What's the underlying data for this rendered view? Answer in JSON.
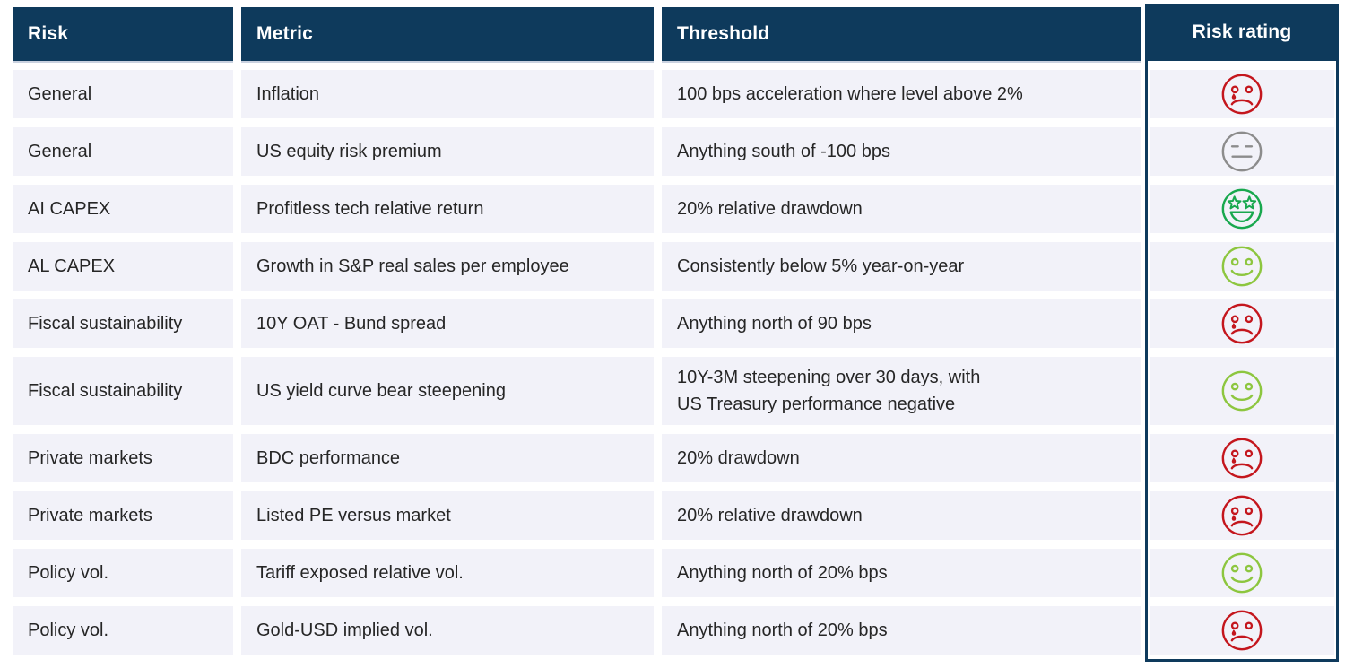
{
  "chart_data": {
    "type": "table",
    "columns": [
      "Risk",
      "Metric",
      "Threshold",
      "Risk rating"
    ],
    "rows": [
      {
        "risk": "General",
        "metric": "Inflation",
        "threshold": "100 bps acceleration where level above 2%",
        "rating": "crying-face"
      },
      {
        "risk": "General",
        "metric": "US equity risk premium",
        "threshold": "Anything south of -100 bps",
        "rating": "neutral-face"
      },
      {
        "risk": "AI CAPEX",
        "metric": "Profitless tech relative return",
        "threshold": "20% relative drawdown",
        "rating": "star-struck-face"
      },
      {
        "risk": "AL CAPEX",
        "metric": "Growth in S&P real sales per employee",
        "threshold": "Consistently below 5% year-on-year",
        "rating": "smiley-face"
      },
      {
        "risk": "Fiscal sustainability",
        "metric": "10Y OAT - Bund spread",
        "threshold": "Anything north of 90 bps",
        "rating": "crying-face"
      },
      {
        "risk": "Fiscal sustainability",
        "metric": "US yield curve bear steepening",
        "threshold": "10Y-3M steepening over 30 days, with\nUS Treasury performance negative",
        "rating": "smiley-face"
      },
      {
        "risk": "Private markets",
        "metric": "BDC performance",
        "threshold": "20% drawdown",
        "rating": "crying-face"
      },
      {
        "risk": "Private markets",
        "metric": "Listed PE versus market",
        "threshold": "20% relative drawdown",
        "rating": "crying-face"
      },
      {
        "risk": "Policy vol.",
        "metric": "Tariff exposed relative vol.",
        "threshold": "Anything north of 20% bps",
        "rating": "smiley-face"
      },
      {
        "risk": "Policy vol.",
        "metric": "Gold-USD implied vol.",
        "threshold": "Anything north of 20% bps",
        "rating": "crying-face"
      }
    ]
  },
  "icons": {
    "crying-face": {
      "color": "#c4161d"
    },
    "neutral-face": {
      "color": "#8c8c8c"
    },
    "star-struck-face": {
      "color": "#18a84e"
    },
    "smiley-face": {
      "color": "#8dc63f"
    }
  },
  "colors": {
    "header_bg": "#0e3a5c",
    "header_text": "#ffffff",
    "row_bg": "#f2f2f9",
    "text": "#262626",
    "rating_border": "#0e3a5c"
  }
}
